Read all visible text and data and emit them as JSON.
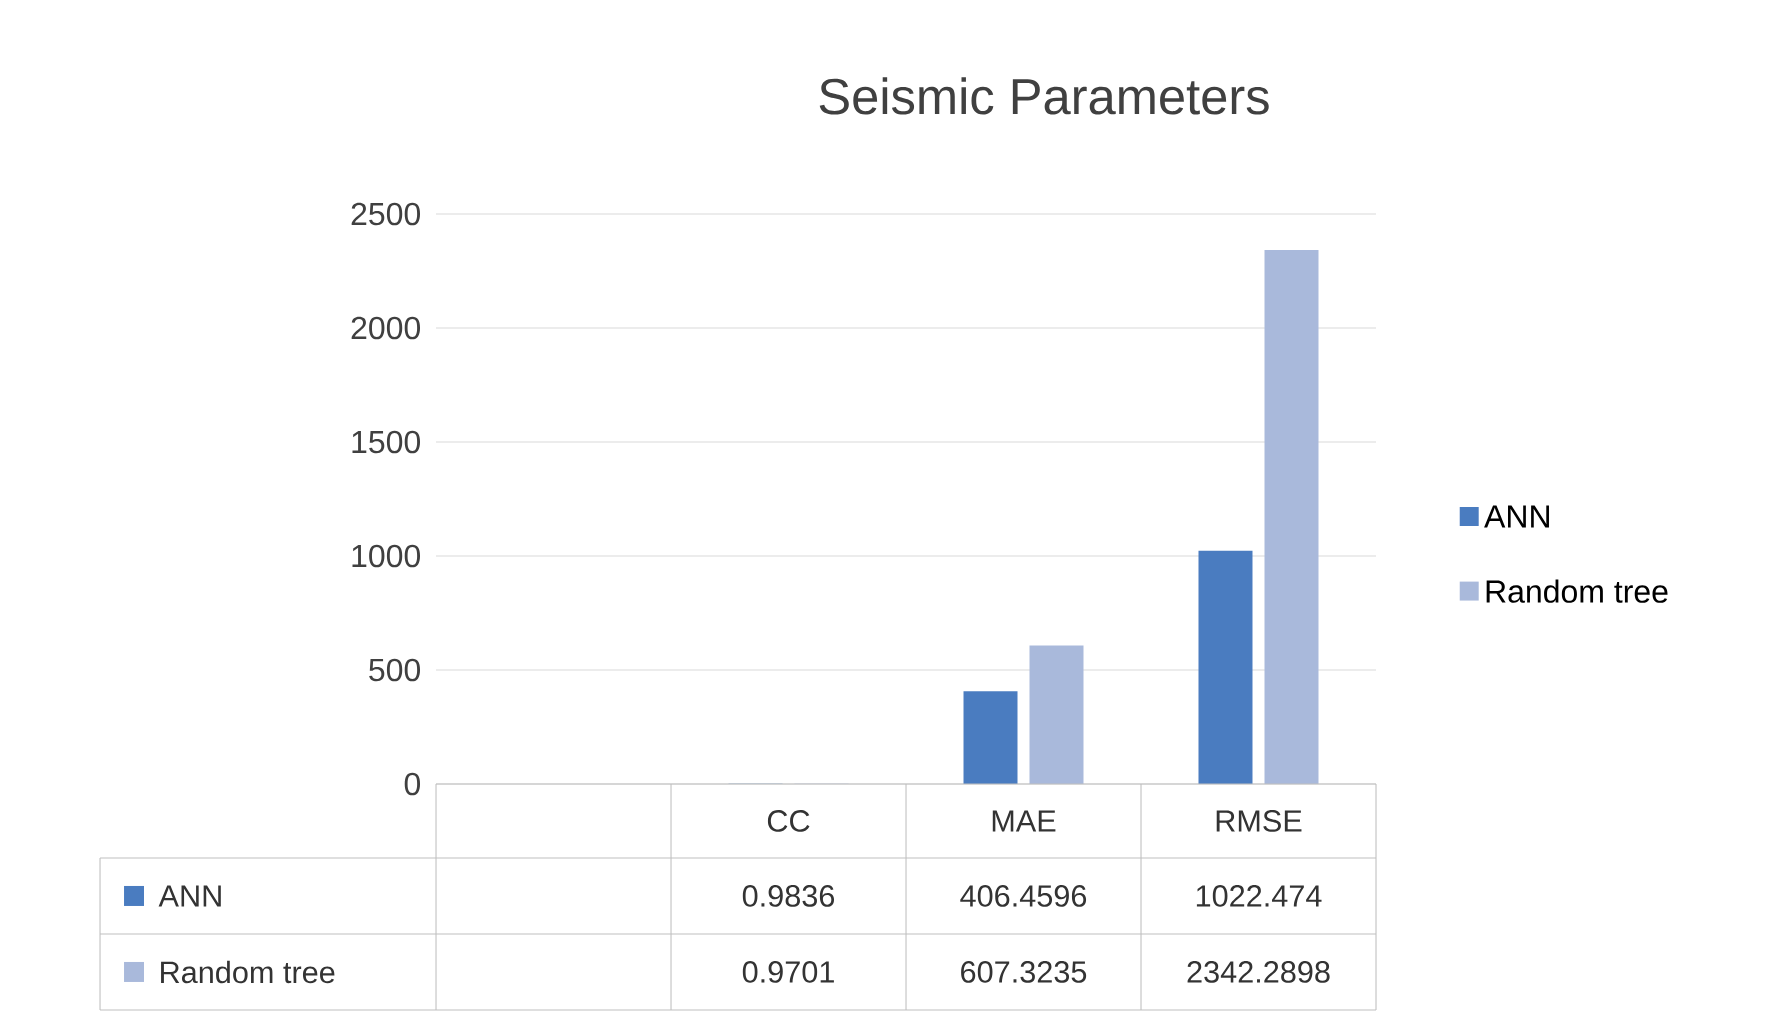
{
  "chart_data": {
    "type": "bar",
    "title": "Seismic Parameters",
    "categories": [
      null,
      "CC",
      "MAE",
      "RMSE"
    ],
    "series": [
      {
        "name": "ANN",
        "color": "#4a7cc0",
        "values": [
          null,
          0.9836,
          406.4596,
          1022.474
        ]
      },
      {
        "name": "Random tree",
        "color": "#a9b9db",
        "values": [
          null,
          0.9701,
          607.3235,
          2342.2898
        ]
      }
    ],
    "ylim": [
      0,
      2500
    ],
    "yticks": [
      0,
      500,
      1000,
      1500,
      2000,
      2500
    ],
    "grid": "y",
    "legend": "right",
    "data_labels": true
  }
}
